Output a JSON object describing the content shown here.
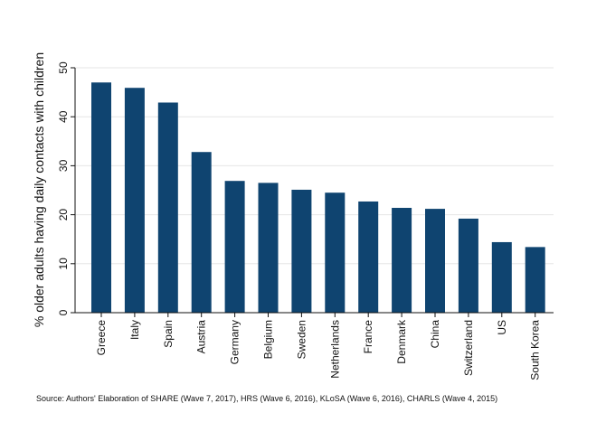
{
  "chart_data": {
    "type": "bar",
    "categories": [
      "Greece",
      "Italy",
      "Spain",
      "Austria",
      "Germany",
      "Belgium",
      "Sweden",
      "Netherlands",
      "France",
      "Denmark",
      "China",
      "Switzerland",
      "US",
      "South Korea"
    ],
    "values": [
      47.0,
      45.9,
      42.9,
      32.8,
      26.9,
      26.5,
      25.1,
      24.5,
      22.7,
      21.4,
      21.2,
      19.2,
      14.4,
      13.4
    ],
    "title": "",
    "xlabel": "",
    "ylabel": "% older adults having daily contacts with children",
    "ylim": [
      0,
      50
    ],
    "yticks": [
      0,
      10,
      20,
      30,
      40,
      50
    ],
    "grid": true,
    "bar_color": "#0f4470",
    "source": "Source: Authors' Elaboration of SHARE (Wave 7, 2017), HRS (Wave 6, 2016), KLoSA (Wave 6, 2016), CHARLS (Wave 4, 2015)"
  }
}
